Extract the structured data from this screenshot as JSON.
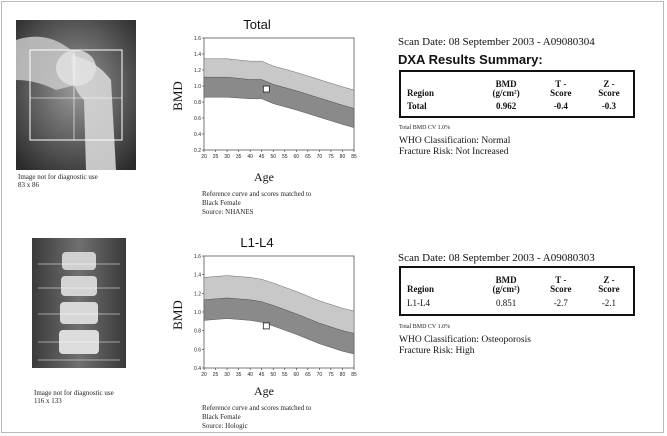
{
  "panels": [
    {
      "image_caption": [
        "Image not for diagnostic use",
        "83 x 86"
      ],
      "chart_title": "Total",
      "ylabel": "BMD",
      "xlabel": "Age",
      "notes": [
        "Reference curve and scores matched to",
        "Black Female",
        "Source: NHANES"
      ],
      "scan_date": "Scan Date: 08 September 2003 - A09080304",
      "summary_title": "DXA Results Summary:",
      "table": {
        "headers": [
          [
            "Region"
          ],
          [
            "BMD",
            "(g/cm²)"
          ],
          [
            "T -",
            "Score"
          ],
          [
            "Z -",
            "Score"
          ]
        ],
        "row": [
          "Total",
          "0.962",
          "-0.4",
          "-0.3"
        ]
      },
      "cv": "Total BMD CV 1.0%",
      "who": "WHO Classification: Normal",
      "risk": "Fracture Risk: Not Increased"
    },
    {
      "image_caption": [
        "Image not for diagnostic use",
        "116 x 133"
      ],
      "chart_title": "L1-L4",
      "ylabel": "BMD",
      "xlabel": "Age",
      "notes": [
        "Reference curve and scores matched to",
        "Black Female",
        "Source: Hologic"
      ],
      "scan_date": "Scan Date: 08 September 2003 - A09080303",
      "summary_title": "",
      "table": {
        "headers": [
          [
            "Region"
          ],
          [
            "BMD",
            "(g/cm²)"
          ],
          [
            "T -",
            "Score"
          ],
          [
            "Z -",
            "Score"
          ]
        ],
        "row": [
          "L1-L4",
          "0.851",
          "-2.7",
          "-2.1"
        ]
      },
      "cv": "Total BMD CV 1.0%",
      "who": "WHO Classification: Osteoporosis",
      "risk": "Fracture Risk: High"
    }
  ],
  "chart_data": [
    {
      "type": "area",
      "title": "Total",
      "xlabel": "Age",
      "ylabel": "BMD",
      "xlim": [
        20,
        85
      ],
      "ylim": [
        0.2,
        1.6
      ],
      "xticks": [
        20,
        25,
        30,
        35,
        40,
        45,
        50,
        55,
        60,
        65,
        70,
        75,
        80,
        85
      ],
      "yticks": [
        0.2,
        0.4,
        0.6,
        0.8,
        1.0,
        1.2,
        1.4,
        1.6
      ],
      "x": [
        20,
        30,
        40,
        45,
        50,
        60,
        70,
        80,
        85
      ],
      "band_outer_upper": [
        1.34,
        1.34,
        1.31,
        1.31,
        1.25,
        1.17,
        1.08,
        0.99,
        0.95
      ],
      "band_middle": [
        1.11,
        1.11,
        1.08,
        1.08,
        1.02,
        0.94,
        0.85,
        0.76,
        0.72
      ],
      "band_outer_lower": [
        0.86,
        0.86,
        0.84,
        0.84,
        0.78,
        0.7,
        0.61,
        0.52,
        0.48
      ],
      "band_colors": [
        "#c8c8c8",
        "#8a8a8a"
      ],
      "patient": {
        "x": 47,
        "y": 0.962
      }
    },
    {
      "type": "area",
      "title": "L1-L4",
      "xlabel": "Age",
      "ylabel": "BMD",
      "xlim": [
        20,
        85
      ],
      "ylim": [
        0.4,
        1.6
      ],
      "xticks": [
        20,
        25,
        30,
        35,
        40,
        45,
        50,
        55,
        60,
        65,
        70,
        75,
        80,
        85
      ],
      "yticks": [
        0.4,
        0.6,
        0.8,
        1.0,
        1.2,
        1.4,
        1.6
      ],
      "x": [
        20,
        30,
        40,
        45,
        50,
        60,
        70,
        80,
        85
      ],
      "band_outer_upper": [
        1.37,
        1.39,
        1.37,
        1.35,
        1.31,
        1.22,
        1.12,
        1.04,
        1.01
      ],
      "band_middle": [
        1.13,
        1.15,
        1.13,
        1.11,
        1.07,
        0.98,
        0.88,
        0.8,
        0.77
      ],
      "band_outer_lower": [
        0.91,
        0.93,
        0.91,
        0.89,
        0.85,
        0.76,
        0.66,
        0.58,
        0.55
      ],
      "band_colors": [
        "#c8c8c8",
        "#8a8a8a"
      ],
      "patient": {
        "x": 47,
        "y": 0.851
      }
    }
  ]
}
